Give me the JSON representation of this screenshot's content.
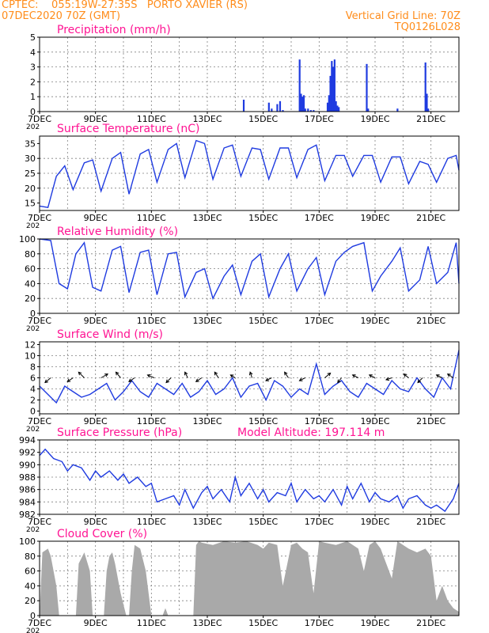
{
  "header": {
    "line1": "CPTEC:    055:19W-27:35S   PORTO XAVIER (RS)",
    "line2": "07DEC2020 70Z (GMT)",
    "right1": "Vertical Grid Line: 70Z",
    "right2": "TQ0126L028",
    "color": "#ff8c1a"
  },
  "colors": {
    "title": "#ff1493",
    "line": "#1f3be0",
    "cloud": "#a9a9a9",
    "grid": "#808080"
  },
  "x_axis": {
    "start_day": 7,
    "end_day": 22,
    "tick_labels": [
      "7DEC",
      "9DEC",
      "11DEC",
      "13DEC",
      "15DEC",
      "17DEC",
      "19DEC",
      "21DEC"
    ],
    "tick_days": [
      7,
      9,
      11,
      13,
      15,
      17,
      19,
      21
    ],
    "year_fragment": "202"
  },
  "chart_data": [
    {
      "type": "bar",
      "title": "Precipitation (mm/h)",
      "ylim": [
        0,
        5
      ],
      "yticks": [
        "0",
        "1",
        "2",
        "3",
        "4",
        "5"
      ],
      "x": [
        14.3,
        15.2,
        15.3,
        15.5,
        15.6,
        15.7,
        16.3,
        16.35,
        16.4,
        16.45,
        16.5,
        16.6,
        16.7,
        16.8,
        17.3,
        17.35,
        17.4,
        17.45,
        17.5,
        17.55,
        17.6,
        17.65,
        17.7,
        18.7,
        18.75,
        19.8,
        20.8,
        20.85,
        20.9
      ],
      "values": [
        0.8,
        0.6,
        0.2,
        0.5,
        0.7,
        0.1,
        3.5,
        1.2,
        1.0,
        1.1,
        0.2,
        0.2,
        0.1,
        0.1,
        0.6,
        1.1,
        2.4,
        3.4,
        3.0,
        3.5,
        0.7,
        0.4,
        0.3,
        3.2,
        0.2,
        0.2,
        3.3,
        1.2,
        0.2
      ]
    },
    {
      "type": "line",
      "title": "Surface Temperature (nC)",
      "ylim": [
        12.5,
        37.5
      ],
      "yticks": [
        "15",
        "20",
        "25",
        "30",
        "35"
      ],
      "ytick_values": [
        15,
        20,
        25,
        30,
        35
      ],
      "x": [
        7.0,
        7.3,
        7.6,
        7.9,
        8.2,
        8.6,
        8.9,
        9.2,
        9.6,
        9.9,
        10.2,
        10.6,
        10.9,
        11.2,
        11.6,
        11.9,
        12.2,
        12.6,
        12.9,
        13.2,
        13.6,
        13.9,
        14.2,
        14.6,
        14.9,
        15.2,
        15.6,
        15.9,
        16.2,
        16.6,
        16.9,
        17.2,
        17.6,
        17.9,
        18.2,
        18.6,
        18.9,
        19.2,
        19.6,
        19.9,
        20.2,
        20.6,
        20.9,
        21.2,
        21.6,
        21.9,
        22.0
      ],
      "y": [
        14.0,
        13.5,
        24.0,
        27.5,
        19.5,
        28.5,
        29.5,
        19.0,
        30.0,
        32.0,
        18.0,
        31.5,
        33.0,
        22.0,
        33.0,
        35.0,
        23.5,
        36.0,
        35.0,
        23.0,
        33.5,
        34.5,
        24.0,
        33.5,
        33.0,
        23.0,
        33.5,
        33.5,
        23.5,
        33.0,
        34.5,
        22.5,
        31.0,
        31.0,
        24.0,
        31.0,
        31.0,
        22.0,
        30.5,
        30.5,
        21.5,
        29.0,
        28.0,
        22.0,
        30.0,
        31.0,
        26.0
      ]
    },
    {
      "type": "line",
      "title": "Relative Humidity (%)",
      "ylim": [
        0,
        100
      ],
      "yticks": [
        "0",
        "20",
        "40",
        "60",
        "80",
        "100"
      ],
      "ytick_values": [
        0,
        20,
        40,
        60,
        80,
        100
      ],
      "x": [
        7.0,
        7.4,
        7.7,
        8.0,
        8.3,
        8.6,
        8.9,
        9.2,
        9.6,
        9.9,
        10.2,
        10.6,
        10.9,
        11.2,
        11.6,
        11.9,
        12.2,
        12.6,
        12.9,
        13.2,
        13.6,
        13.9,
        14.2,
        14.6,
        14.9,
        15.2,
        15.6,
        15.9,
        16.2,
        16.6,
        16.9,
        17.2,
        17.6,
        17.9,
        18.2,
        18.6,
        18.9,
        19.2,
        19.6,
        19.9,
        20.2,
        20.6,
        20.9,
        21.2,
        21.6,
        21.9,
        22.0
      ],
      "y": [
        100,
        98,
        40,
        33,
        80,
        95,
        35,
        30,
        85,
        90,
        28,
        82,
        85,
        25,
        80,
        82,
        22,
        55,
        60,
        20,
        50,
        65,
        25,
        70,
        80,
        22,
        60,
        80,
        30,
        60,
        75,
        25,
        70,
        82,
        90,
        95,
        30,
        50,
        70,
        88,
        30,
        45,
        90,
        40,
        55,
        95,
        40
      ]
    },
    {
      "type": "line",
      "title": "Surface Wind (m/s)",
      "ylim": [
        -0.5,
        12.5
      ],
      "yticks": [
        "0",
        "2",
        "4",
        "6",
        "8",
        "10",
        "12"
      ],
      "ytick_values": [
        0,
        2,
        4,
        6,
        8,
        10,
        12
      ],
      "x": [
        7.0,
        7.3,
        7.6,
        7.9,
        8.2,
        8.5,
        8.8,
        9.1,
        9.4,
        9.7,
        10.0,
        10.3,
        10.6,
        10.9,
        11.2,
        11.5,
        11.8,
        12.1,
        12.4,
        12.7,
        13.0,
        13.3,
        13.6,
        13.9,
        14.2,
        14.5,
        14.8,
        15.1,
        15.4,
        15.7,
        16.0,
        16.3,
        16.6,
        16.9,
        17.2,
        17.5,
        17.8,
        18.1,
        18.4,
        18.7,
        19.0,
        19.3,
        19.6,
        19.9,
        20.2,
        20.5,
        20.8,
        21.1,
        21.4,
        21.7,
        22.0
      ],
      "y": [
        4.5,
        3.0,
        1.5,
        4.5,
        3.5,
        2.5,
        3.0,
        4.0,
        5.0,
        2.0,
        3.5,
        5.5,
        3.5,
        2.5,
        5.0,
        4.0,
        3.0,
        5.0,
        2.5,
        3.5,
        5.5,
        3.0,
        4.0,
        6.0,
        2.5,
        4.5,
        5.0,
        2.0,
        5.5,
        4.5,
        2.5,
        4.0,
        3.0,
        8.5,
        3.0,
        4.5,
        5.5,
        3.5,
        2.5,
        5.0,
        4.0,
        3.0,
        5.5,
        4.0,
        3.5,
        6.0,
        4.0,
        2.5,
        6.0,
        4.0,
        11.0
      ],
      "barbs": [
        {
          "x": 7.4,
          "u": -0.6,
          "v": -0.5
        },
        {
          "x": 8.2,
          "u": -0.6,
          "v": -0.4
        },
        {
          "x": 8.6,
          "u": -0.6,
          "v": 0.6
        },
        {
          "x": 9.2,
          "u": 0.7,
          "v": 0.4
        },
        {
          "x": 9.9,
          "u": -0.5,
          "v": 0.6
        },
        {
          "x": 10.4,
          "u": -0.6,
          "v": -0.4
        },
        {
          "x": 11.1,
          "u": -0.7,
          "v": 0.3
        },
        {
          "x": 11.7,
          "u": -0.5,
          "v": -0.5
        },
        {
          "x": 12.3,
          "u": -0.3,
          "v": 0.6
        },
        {
          "x": 12.8,
          "u": -0.6,
          "v": -0.4
        },
        {
          "x": 13.4,
          "u": -0.4,
          "v": 0.6
        },
        {
          "x": 14.0,
          "u": -0.5,
          "v": 0.3
        },
        {
          "x": 14.6,
          "u": -0.2,
          "v": 0.6
        },
        {
          "x": 15.3,
          "u": -0.6,
          "v": -0.3
        },
        {
          "x": 15.9,
          "u": -0.4,
          "v": 0.6
        },
        {
          "x": 16.5,
          "u": -0.6,
          "v": -0.3
        },
        {
          "x": 17.2,
          "u": 0.6,
          "v": 0.5
        },
        {
          "x": 17.8,
          "u": -0.4,
          "v": -0.5
        },
        {
          "x": 18.4,
          "u": -0.6,
          "v": 0.3
        },
        {
          "x": 19.0,
          "u": -0.6,
          "v": 0.3
        },
        {
          "x": 19.6,
          "u": -0.6,
          "v": -0.2
        },
        {
          "x": 20.2,
          "u": -0.5,
          "v": 0.4
        },
        {
          "x": 20.7,
          "u": -0.5,
          "v": -0.5
        },
        {
          "x": 21.4,
          "u": -0.6,
          "v": 0.3
        },
        {
          "x": 21.8,
          "u": -0.6,
          "v": 0.4
        }
      ]
    },
    {
      "type": "line",
      "title": "Surface Pressure (hPa)",
      "annotation": "Model Altitude: 197.114 m",
      "ylim": [
        982,
        994
      ],
      "yticks": [
        "982",
        "984",
        "986",
        "988",
        "990",
        "992",
        "994"
      ],
      "ytick_values": [
        982,
        984,
        986,
        988,
        990,
        992,
        994
      ],
      "x": [
        7.0,
        7.2,
        7.5,
        7.8,
        8.0,
        8.2,
        8.5,
        8.8,
        9.0,
        9.2,
        9.5,
        9.8,
        10.0,
        10.2,
        10.5,
        10.8,
        11.0,
        11.2,
        11.5,
        11.8,
        12.0,
        12.2,
        12.5,
        12.8,
        13.0,
        13.2,
        13.5,
        13.8,
        14.0,
        14.2,
        14.5,
        14.8,
        15.0,
        15.2,
        15.5,
        15.8,
        16.0,
        16.2,
        16.5,
        16.8,
        17.0,
        17.2,
        17.5,
        17.8,
        18.0,
        18.2,
        18.5,
        18.8,
        19.0,
        19.2,
        19.5,
        19.8,
        20.0,
        20.2,
        20.5,
        20.8,
        21.0,
        21.2,
        21.5,
        21.8,
        22.0
      ],
      "y": [
        991.5,
        992.5,
        991.0,
        990.5,
        989.0,
        990.0,
        989.5,
        987.5,
        989.0,
        988.0,
        989.0,
        987.5,
        988.5,
        987.0,
        988.0,
        986.5,
        987.0,
        984.0,
        984.5,
        985.0,
        983.5,
        986.0,
        983.0,
        985.5,
        986.5,
        984.5,
        986.0,
        984.0,
        988.0,
        985.0,
        987.0,
        984.5,
        986.0,
        984.0,
        985.5,
        985.0,
        987.0,
        984.0,
        986.0,
        984.5,
        985.0,
        984.0,
        986.0,
        983.5,
        986.5,
        984.5,
        987.0,
        984.0,
        985.5,
        984.5,
        984.0,
        985.0,
        983.0,
        984.5,
        985.0,
        983.5,
        983.0,
        983.5,
        982.5,
        984.5,
        987.0
      ]
    },
    {
      "type": "area",
      "title": "Cloud Cover (%)",
      "ylim": [
        0,
        100
      ],
      "yticks": [
        "0",
        "20",
        "40",
        "60",
        "80",
        "100"
      ],
      "ytick_values": [
        0,
        20,
        40,
        60,
        80,
        100
      ],
      "x": [
        7.0,
        7.1,
        7.3,
        7.4,
        7.6,
        7.7,
        8.0,
        8.3,
        8.4,
        8.6,
        8.8,
        8.9,
        9.0,
        9.3,
        9.4,
        9.5,
        9.6,
        9.7,
        9.9,
        10.1,
        10.2,
        10.3,
        10.4,
        10.6,
        10.8,
        11.0,
        11.4,
        11.5,
        11.6,
        12.0,
        12.5,
        12.6,
        12.7,
        12.8,
        13.2,
        13.6,
        14.0,
        14.4,
        14.8,
        15.0,
        15.2,
        15.5,
        15.7,
        16.0,
        16.2,
        16.4,
        16.6,
        16.8,
        17.0,
        17.2,
        17.6,
        18.0,
        18.4,
        18.6,
        18.8,
        19.0,
        19.2,
        19.4,
        19.6,
        19.8,
        20.0,
        20.2,
        20.5,
        20.8,
        21.0,
        21.2,
        21.4,
        21.5,
        21.6,
        21.8,
        22.0
      ],
      "y": [
        0,
        85,
        90,
        80,
        40,
        0,
        0,
        0,
        70,
        85,
        60,
        0,
        0,
        0,
        60,
        80,
        85,
        70,
        30,
        0,
        0,
        60,
        95,
        90,
        60,
        0,
        0,
        10,
        0,
        0,
        0,
        95,
        100,
        98,
        95,
        100,
        98,
        100,
        95,
        90,
        98,
        95,
        40,
        95,
        98,
        90,
        85,
        30,
        100,
        98,
        95,
        100,
        90,
        60,
        95,
        100,
        90,
        70,
        50,
        100,
        95,
        90,
        85,
        90,
        80,
        20,
        40,
        30,
        20,
        10,
        5
      ]
    }
  ]
}
